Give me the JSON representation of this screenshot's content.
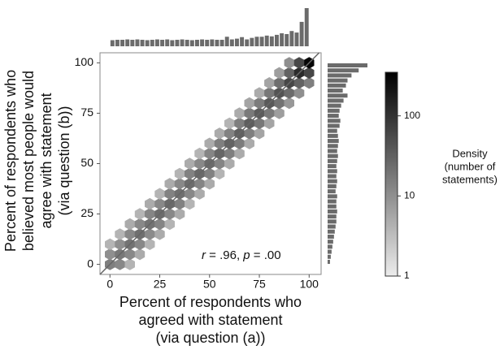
{
  "chart_data": {
    "type": "hexbin",
    "xlabel": [
      "Percent of respondents who",
      "agreed with statement",
      "(via question (a))"
    ],
    "ylabel": [
      "Percent of respondents who",
      "believed most people would",
      "agree with statement",
      "(via question (b))"
    ],
    "annotation": [
      "r",
      " = .96, ",
      "p",
      " = .00"
    ],
    "xlim": [
      -5,
      106
    ],
    "ylim": [
      -5,
      105
    ],
    "xticks": [
      0,
      25,
      50,
      75,
      100
    ],
    "yticks": [
      0,
      25,
      50,
      75,
      100
    ],
    "hexbins": {
      "x": [
        0,
        0,
        0,
        5,
        5,
        5,
        5,
        10,
        10,
        10,
        10,
        10,
        15,
        15,
        15,
        15,
        15,
        20,
        20,
        20,
        20,
        20,
        25,
        25,
        25,
        25,
        25,
        30,
        30,
        30,
        30,
        30,
        35,
        35,
        35,
        35,
        35,
        40,
        40,
        40,
        40,
        40,
        45,
        45,
        45,
        45,
        45,
        50,
        50,
        50,
        50,
        50,
        55,
        55,
        55,
        55,
        55,
        60,
        60,
        60,
        60,
        60,
        65,
        65,
        65,
        65,
        65,
        70,
        70,
        70,
        70,
        70,
        75,
        75,
        75,
        75,
        75,
        80,
        80,
        80,
        80,
        80,
        85,
        85,
        85,
        85,
        85,
        90,
        90,
        90,
        90,
        90,
        95,
        95,
        95,
        95,
        100,
        100,
        100
      ],
      "y": [
        0,
        5,
        10,
        0,
        5,
        10,
        15,
        0,
        5,
        10,
        15,
        20,
        5,
        10,
        15,
        20,
        25,
        10,
        15,
        20,
        25,
        30,
        15,
        20,
        25,
        30,
        35,
        20,
        25,
        30,
        35,
        40,
        25,
        30,
        35,
        40,
        45,
        30,
        35,
        40,
        45,
        50,
        35,
        40,
        45,
        50,
        55,
        40,
        45,
        50,
        55,
        60,
        45,
        50,
        55,
        60,
        65,
        50,
        55,
        60,
        65,
        70,
        55,
        60,
        65,
        70,
        75,
        60,
        65,
        70,
        75,
        80,
        65,
        70,
        75,
        80,
        85,
        70,
        75,
        80,
        85,
        90,
        75,
        80,
        85,
        90,
        95,
        80,
        85,
        90,
        95,
        100,
        85,
        90,
        95,
        100,
        90,
        95,
        100
      ],
      "counts": [
        15,
        10,
        4,
        12,
        18,
        10,
        4,
        4,
        12,
        20,
        12,
        5,
        5,
        12,
        22,
        12,
        4,
        4,
        11,
        20,
        13,
        5,
        5,
        13,
        24,
        12,
        4,
        4,
        12,
        25,
        14,
        5,
        5,
        14,
        22,
        12,
        4,
        4,
        12,
        24,
        14,
        5,
        5,
        13,
        26,
        12,
        4,
        5,
        14,
        25,
        13,
        5,
        4,
        13,
        28,
        15,
        5,
        5,
        15,
        30,
        14,
        4,
        5,
        16,
        32,
        15,
        5,
        5,
        15,
        34,
        17,
        6,
        6,
        18,
        36,
        16,
        5,
        6,
        17,
        38,
        18,
        6,
        7,
        20,
        45,
        22,
        7,
        8,
        24,
        60,
        30,
        10,
        10,
        30,
        120,
        60,
        15,
        60,
        300
      ]
    },
    "colormap": [
      "#ececec",
      "#000000"
    ],
    "clim": [
      1,
      350
    ],
    "cscale": "log",
    "cticks": [
      1,
      10,
      100
    ],
    "colorbar_label": [
      "Density",
      "(number of",
      "statements)"
    ],
    "top_hist": {
      "color": "#6b6b6b",
      "bins": [
        0,
        2.5,
        5,
        7.5,
        10,
        12.5,
        15,
        17.5,
        20,
        22.5,
        25,
        27.5,
        30,
        32.5,
        35,
        37.5,
        40,
        42.5,
        45,
        47.5,
        50,
        52.5,
        55,
        57.5,
        60,
        62.5,
        65,
        67.5,
        70,
        72.5,
        75,
        77.5,
        80,
        82.5,
        85,
        87.5,
        90,
        92.5,
        95,
        97.5,
        100
      ],
      "counts": [
        16,
        17,
        17,
        18,
        17,
        18,
        17,
        16,
        17,
        18,
        17,
        18,
        16,
        17,
        18,
        17,
        16,
        17,
        18,
        17,
        18,
        17,
        17,
        25,
        18,
        20,
        24,
        18,
        22,
        25,
        25,
        28,
        26,
        30,
        34,
        32,
        40,
        36,
        64,
        100
      ]
    },
    "right_hist": {
      "color": "#6b6b6b",
      "bins": [
        0,
        2.5,
        5,
        7.5,
        10,
        12.5,
        15,
        17.5,
        20,
        22.5,
        25,
        27.5,
        30,
        32.5,
        35,
        37.5,
        40,
        42.5,
        45,
        47.5,
        50,
        52.5,
        55,
        57.5,
        60,
        62.5,
        65,
        67.5,
        70,
        72.5,
        75,
        77.5,
        80,
        82.5,
        85,
        87.5,
        90,
        92.5,
        95,
        97.5,
        100
      ],
      "counts": [
        6,
        8,
        10,
        12,
        14,
        16,
        18,
        20,
        22,
        22,
        24,
        22,
        22,
        24,
        20,
        22,
        24,
        22,
        24,
        22,
        24,
        26,
        24,
        26,
        28,
        26,
        24,
        30,
        32,
        28,
        30,
        34,
        40,
        50,
        38,
        46,
        50,
        60,
        78,
        100
      ]
    }
  }
}
